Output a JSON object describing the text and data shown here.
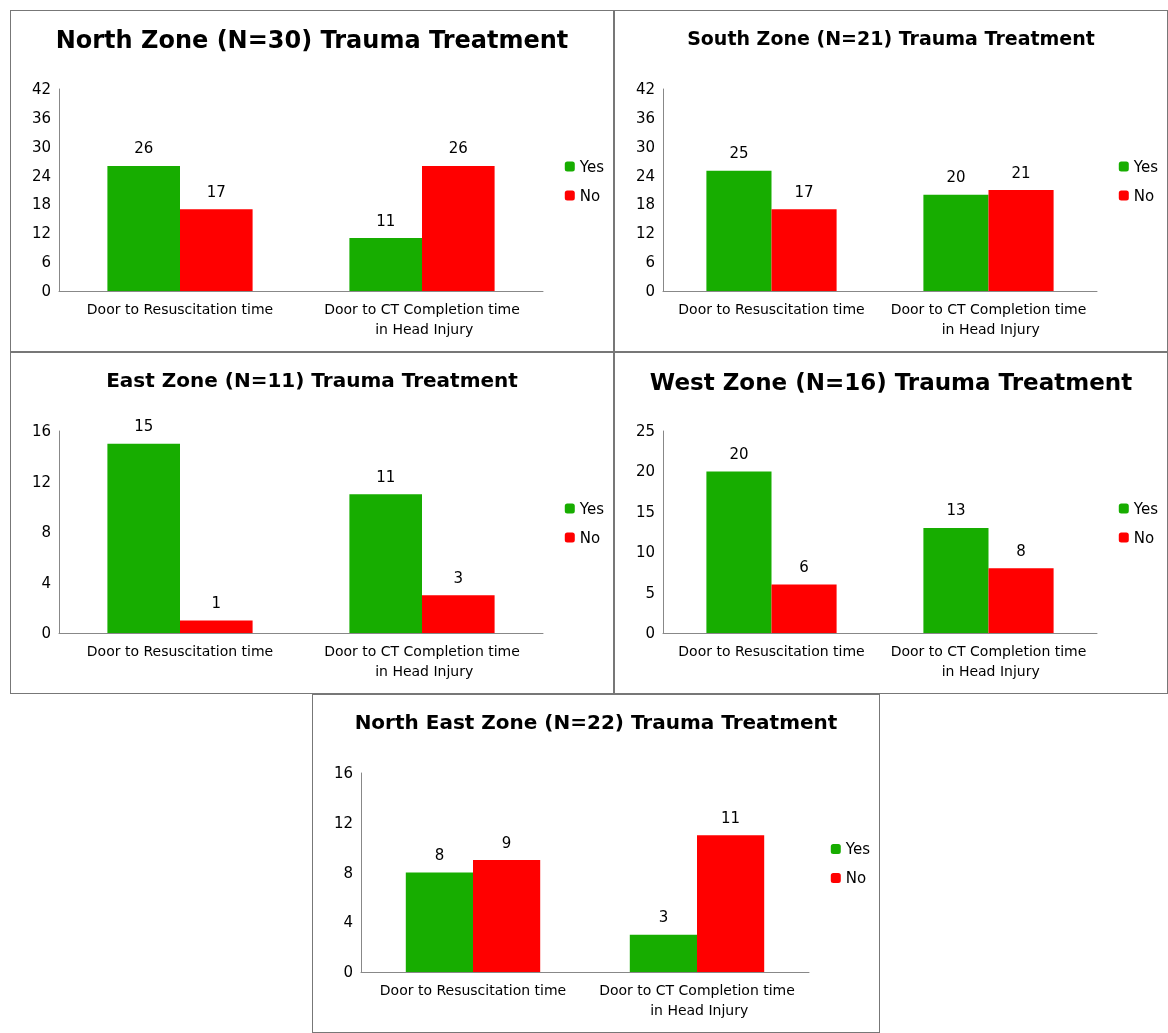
{
  "chart_data": [
    {
      "type": "bar",
      "title": "North Zone (N=30) Trauma Treatment",
      "categories": [
        "Door to Resuscitation time",
        "Door to CT Completion time in Head Injury"
      ],
      "series": [
        {
          "name": "Yes",
          "color": "#17ad00",
          "values": [
            26,
            11
          ]
        },
        {
          "name": "No",
          "color": "#ff0000",
          "values": [
            17,
            26
          ]
        }
      ],
      "ylim": [
        0,
        42
      ],
      "yticks": [
        0,
        6,
        12,
        18,
        24,
        30,
        36,
        42
      ],
      "grid": false,
      "legend": "right",
      "data_labels": true
    },
    {
      "type": "bar",
      "title": "South Zone (N=21) Trauma Treatment",
      "categories": [
        "Door to Resuscitation time",
        "Door to CT Completion time in Head Injury"
      ],
      "series": [
        {
          "name": "Yes",
          "color": "#17ad00",
          "values": [
            25,
            20
          ]
        },
        {
          "name": "No",
          "color": "#ff0000",
          "values": [
            17,
            21
          ]
        }
      ],
      "ylim": [
        0,
        42
      ],
      "yticks": [
        0,
        6,
        12,
        18,
        24,
        30,
        36,
        42
      ],
      "grid": false,
      "legend": "right",
      "data_labels": true
    },
    {
      "type": "bar",
      "title": "East Zone (N=11) Trauma Treatment",
      "categories": [
        "Door to Resuscitation time",
        "Door to CT Completion time in Head Injury"
      ],
      "series": [
        {
          "name": "Yes",
          "color": "#17ad00",
          "values": [
            15,
            11
          ]
        },
        {
          "name": "No",
          "color": "#ff0000",
          "values": [
            1,
            3
          ]
        }
      ],
      "ylim": [
        0,
        16
      ],
      "yticks": [
        0,
        4,
        8,
        12,
        16
      ],
      "grid": false,
      "legend": "right",
      "data_labels": true
    },
    {
      "type": "bar",
      "title": "West Zone (N=16) Trauma Treatment",
      "categories": [
        "Door to Resuscitation time",
        "Door to CT Completion time in Head Injury"
      ],
      "series": [
        {
          "name": "Yes",
          "color": "#17ad00",
          "values": [
            20,
            13
          ]
        },
        {
          "name": "No",
          "color": "#ff0000",
          "values": [
            6,
            8
          ]
        }
      ],
      "ylim": [
        0,
        25
      ],
      "yticks": [
        0,
        5,
        10,
        15,
        20,
        25
      ],
      "grid": false,
      "legend": "right",
      "data_labels": true
    },
    {
      "type": "bar",
      "title": "North East Zone (N=22) Trauma Treatment",
      "categories": [
        "Door to Resuscitation time",
        "Door to CT Completion time in Head Injury"
      ],
      "series": [
        {
          "name": "Yes",
          "color": "#17ad00",
          "values": [
            8,
            3
          ]
        },
        {
          "name": "No",
          "color": "#ff0000",
          "values": [
            9,
            11
          ]
        }
      ],
      "ylim": [
        0,
        16
      ],
      "yticks": [
        0,
        4,
        8,
        12,
        16
      ],
      "grid": false,
      "legend": "right",
      "data_labels": true
    }
  ]
}
